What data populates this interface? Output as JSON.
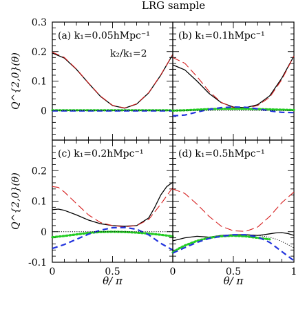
{
  "figure": {
    "title": "LRG sample",
    "ylabel": "Q^{2,0}(θ)",
    "xlabel": "θ/ π"
  },
  "chart_data": [
    {
      "type": "line",
      "panel": "(a)",
      "label": "(a)  k₁=0.05hMpc⁻¹",
      "label2": "k₂/k₁=2",
      "xlim": [
        0,
        1
      ],
      "ylim": [
        -0.1,
        0.3
      ],
      "yticks": [
        0,
        0.1,
        0.2,
        0.3
      ],
      "xticks": [
        0,
        0.5,
        1
      ],
      "series": [
        {
          "style": "solid",
          "color": "#000000",
          "x": [
            0,
            0.1,
            0.2,
            0.3,
            0.4,
            0.5,
            0.6,
            0.7,
            0.8,
            0.9,
            1.0
          ],
          "y": [
            0.195,
            0.178,
            0.14,
            0.093,
            0.048,
            0.017,
            0.008,
            0.022,
            0.06,
            0.12,
            0.19
          ]
        },
        {
          "style": "dashed-long",
          "color": "#d62020",
          "x": [
            0,
            0.1,
            0.2,
            0.3,
            0.4,
            0.5,
            0.6,
            0.7,
            0.8,
            0.9,
            1.0
          ],
          "y": [
            0.198,
            0.18,
            0.141,
            0.094,
            0.049,
            0.018,
            0.009,
            0.023,
            0.061,
            0.121,
            0.19
          ]
        },
        {
          "style": "dotted",
          "color": "#22cc22",
          "x": [
            0,
            0.25,
            0.5,
            0.75,
            1.0
          ],
          "y": [
            0.001,
            0.001,
            0.001,
            0.001,
            0.001
          ]
        },
        {
          "style": "dashed",
          "color": "#2233dd",
          "x": [
            0,
            0.25,
            0.5,
            0.75,
            1.0
          ],
          "y": [
            -0.001,
            -0.001,
            -0.001,
            -0.001,
            -0.001
          ]
        },
        {
          "style": "dotted-fine",
          "color": "#000000",
          "x": [
            0,
            0.25,
            0.5,
            0.75,
            1.0
          ],
          "y": [
            0.0,
            0.0,
            0.0,
            0.0,
            0.0
          ]
        }
      ]
    },
    {
      "type": "line",
      "panel": "(b)",
      "label": "(b)  k₁=0.1hMpc⁻¹",
      "xlim": [
        0,
        1
      ],
      "ylim": [
        -0.1,
        0.3
      ],
      "xticks": [
        0,
        0.5,
        1
      ],
      "series": [
        {
          "style": "solid",
          "color": "#000000",
          "x": [
            0,
            0.1,
            0.2,
            0.3,
            0.4,
            0.5,
            0.6,
            0.7,
            0.8,
            0.9,
            1.0
          ],
          "y": [
            0.155,
            0.138,
            0.1,
            0.058,
            0.027,
            0.012,
            0.01,
            0.02,
            0.05,
            0.11,
            0.185
          ]
        },
        {
          "style": "dashed-long",
          "color": "#d62020",
          "x": [
            0,
            0.1,
            0.2,
            0.3,
            0.4,
            0.5,
            0.6,
            0.7,
            0.8,
            0.9,
            1.0
          ],
          "y": [
            0.18,
            0.16,
            0.115,
            0.065,
            0.028,
            0.01,
            0.008,
            0.017,
            0.045,
            0.105,
            0.185
          ]
        },
        {
          "style": "dotted",
          "color": "#22cc22",
          "x": [
            0,
            0.1,
            0.2,
            0.3,
            0.4,
            0.5,
            0.6,
            0.7,
            0.8,
            0.9,
            1.0
          ],
          "y": [
            0.0,
            0.001,
            0.003,
            0.005,
            0.006,
            0.006,
            0.006,
            0.005,
            0.004,
            0.003,
            0.002
          ]
        },
        {
          "style": "dashed",
          "color": "#2233dd",
          "x": [
            0,
            0.1,
            0.2,
            0.3,
            0.4,
            0.5,
            0.6,
            0.7,
            0.8,
            0.9,
            1.0
          ],
          "y": [
            -0.018,
            -0.015,
            -0.005,
            0.004,
            0.01,
            0.012,
            0.011,
            0.006,
            -0.001,
            -0.006,
            -0.007
          ]
        },
        {
          "style": "dotted-fine",
          "color": "#000000",
          "x": [
            0,
            0.25,
            0.5,
            0.75,
            1.0
          ],
          "y": [
            0.0,
            0.0,
            0.0,
            0.0,
            0.0
          ]
        }
      ]
    },
    {
      "type": "line",
      "panel": "(c)",
      "label": "(c)  k₁=0.2hMpc⁻¹",
      "xlim": [
        0,
        1
      ],
      "ylim": [
        -0.1,
        0.3
      ],
      "yticks": [
        -0.1,
        0,
        0.1,
        0.2
      ],
      "xticks": [
        0,
        0.5,
        1
      ],
      "series": [
        {
          "style": "solid",
          "color": "#000000",
          "x": [
            0,
            0.05,
            0.1,
            0.2,
            0.3,
            0.4,
            0.5,
            0.6,
            0.7,
            0.8,
            0.85,
            0.9,
            0.95,
            1.0
          ],
          "y": [
            0.072,
            0.074,
            0.07,
            0.055,
            0.038,
            0.026,
            0.02,
            0.018,
            0.02,
            0.045,
            0.08,
            0.12,
            0.148,
            0.162
          ]
        },
        {
          "style": "dashed-long",
          "color": "#d62020",
          "x": [
            0,
            0.05,
            0.1,
            0.2,
            0.3,
            0.4,
            0.5,
            0.6,
            0.7,
            0.8,
            0.9,
            1.0
          ],
          "y": [
            0.148,
            0.145,
            0.13,
            0.092,
            0.055,
            0.03,
            0.02,
            0.016,
            0.02,
            0.04,
            0.09,
            0.145
          ]
        },
        {
          "style": "dotted",
          "color": "#22cc22",
          "x": [
            0,
            0.1,
            0.2,
            0.3,
            0.4,
            0.5,
            0.6,
            0.7,
            0.8,
            0.9,
            1.0
          ],
          "y": [
            -0.018,
            -0.014,
            -0.009,
            -0.004,
            -0.001,
            0.0,
            -0.001,
            -0.003,
            -0.006,
            -0.01,
            -0.015
          ]
        },
        {
          "style": "dashed",
          "color": "#2233dd",
          "x": [
            0,
            0.1,
            0.2,
            0.3,
            0.4,
            0.5,
            0.6,
            0.7,
            0.8,
            0.9,
            1.0
          ],
          "y": [
            -0.055,
            -0.042,
            -0.025,
            -0.008,
            0.005,
            0.013,
            0.014,
            0.008,
            -0.01,
            -0.038,
            -0.06
          ]
        },
        {
          "style": "dotted-fine",
          "color": "#000000",
          "x": [
            0,
            0.25,
            0.5,
            0.75,
            1.0
          ],
          "y": [
            0.0,
            0.0,
            0.0,
            0.0,
            0.0
          ]
        }
      ]
    },
    {
      "type": "line",
      "panel": "(d)",
      "label": "(d)  k₁=0.5hMpc⁻¹",
      "xlim": [
        0,
        1
      ],
      "ylim": [
        -0.1,
        0.3
      ],
      "xticks": [
        0,
        0.5,
        1
      ],
      "series": [
        {
          "style": "solid",
          "color": "#000000",
          "x": [
            0,
            0.1,
            0.2,
            0.3,
            0.4,
            0.5,
            0.6,
            0.7,
            0.75,
            0.8,
            0.85,
            0.9,
            0.95,
            1.0
          ],
          "y": [
            -0.03,
            -0.02,
            -0.015,
            -0.018,
            -0.012,
            -0.01,
            -0.01,
            -0.012,
            -0.01,
            -0.007,
            -0.004,
            -0.003,
            -0.006,
            -0.012
          ]
        },
        {
          "style": "dashed-long",
          "color": "#d62020",
          "x": [
            0,
            0.1,
            0.2,
            0.3,
            0.4,
            0.5,
            0.6,
            0.7,
            0.8,
            0.9,
            1.0
          ],
          "y": [
            0.14,
            0.125,
            0.09,
            0.05,
            0.018,
            0.003,
            0.001,
            0.015,
            0.05,
            0.095,
            0.13
          ]
        },
        {
          "style": "dotted",
          "color": "#22cc22",
          "x": [
            0,
            0.05,
            0.1,
            0.2,
            0.3,
            0.4,
            0.5,
            0.6,
            0.7,
            0.8
          ],
          "y": [
            -0.068,
            -0.055,
            -0.045,
            -0.03,
            -0.02,
            -0.015,
            -0.013,
            -0.015,
            -0.02,
            -0.025
          ]
        },
        {
          "style": "dashed",
          "color": "#2233dd",
          "x": [
            0,
            0.1,
            0.2,
            0.3,
            0.4,
            0.5,
            0.6,
            0.7,
            0.8,
            0.85,
            0.9,
            0.95,
            1.0
          ],
          "y": [
            -0.07,
            -0.052,
            -0.035,
            -0.022,
            -0.015,
            -0.01,
            -0.01,
            -0.017,
            -0.035,
            -0.05,
            -0.065,
            -0.08,
            -0.095
          ]
        },
        {
          "style": "dotted-fine",
          "color": "#000000",
          "x": [
            0.7,
            0.8,
            0.85,
            0.9,
            0.95,
            1.0
          ],
          "y": [
            -0.012,
            -0.018,
            -0.024,
            -0.032,
            -0.042,
            -0.053
          ]
        }
      ]
    }
  ]
}
